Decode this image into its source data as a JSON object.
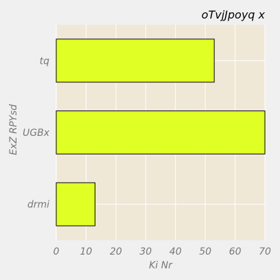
{
  "chart_data": {
    "type": "bar",
    "orientation": "horizontal",
    "title": "oTvjJpoyq x",
    "xlabel": "Ki Nr",
    "ylabel": "ExZ RPYsd",
    "categories": [
      "tq",
      "UGBx",
      "drmi"
    ],
    "values": [
      53,
      70,
      13
    ],
    "xlim": [
      0,
      70
    ],
    "xticks": [
      0,
      10,
      20,
      30,
      40,
      50,
      60,
      70
    ],
    "grid": true,
    "legend": "none",
    "colors": {
      "bar": "#e0ff24",
      "bar_edge": "#000000",
      "plot_bg": "#efe8d7",
      "page_bg": "#f0f0f0",
      "grid": "#ffffff",
      "text": "#777777"
    }
  }
}
